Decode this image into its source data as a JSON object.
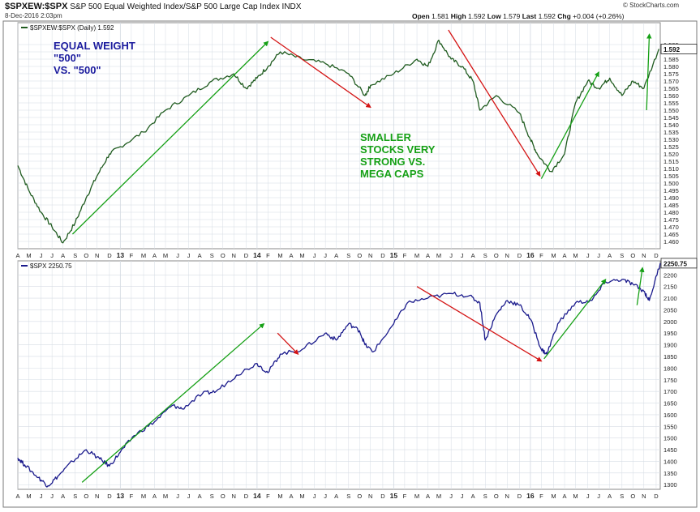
{
  "header": {
    "symbol": "$SPXEW:$SPX",
    "description": "S&P 500 Equal Weighted Index/S&P 500 Large Cap Index",
    "exchange": "INDX",
    "date": "8-Dec-2016 2:03pm",
    "brand": "© StockCharts.com",
    "quote": {
      "open_label": "Open",
      "open": "1.581",
      "high_label": "High",
      "high": "1.592",
      "low_label": "Low",
      "low": "1.579",
      "last_label": "Last",
      "last": "1.592",
      "chg_label": "Chg",
      "chg": "+0.004 (+0.26%)"
    }
  },
  "colors": {
    "ratio_line": "#1f5b1f",
    "spx_line": "#1a1a8c",
    "up_arrow": "#16a016",
    "down_arrow": "#d41414",
    "grid": "#d6dce4",
    "annotation_blue": "#1c1c9e",
    "annotation_green": "#16a016"
  },
  "chart_data": [
    {
      "type": "line",
      "legend": "$SPXEW:$SPX (Daily) 1.592",
      "last_value_label": "1.592",
      "ylim": [
        1.455,
        1.61
      ],
      "yticks": [
        1.46,
        1.465,
        1.47,
        1.475,
        1.48,
        1.485,
        1.49,
        1.495,
        1.5,
        1.505,
        1.51,
        1.515,
        1.52,
        1.525,
        1.53,
        1.535,
        1.54,
        1.545,
        1.55,
        1.555,
        1.56,
        1.565,
        1.57,
        1.575,
        1.58,
        1.585,
        1.59,
        1.595
      ],
      "ytick_labels": [
        "1.460",
        "1.465",
        "1.470",
        "1.475",
        "1.480",
        "1.485",
        "1.490",
        "1.495",
        "1.500",
        "1.505",
        "1.510",
        "1.515",
        "1.520",
        "1.525",
        "1.530",
        "1.535",
        "1.540",
        "1.545",
        "1.550",
        "1.555",
        "1.560",
        "1.565",
        "1.570",
        "1.575",
        "1.580",
        "1.585",
        "1.590",
        "1.595"
      ],
      "x": [
        2012.25,
        2012.33,
        2012.42,
        2012.5,
        2012.58,
        2012.67,
        2012.75,
        2012.83,
        2012.92,
        2013.0,
        2013.17,
        2013.33,
        2013.5,
        2013.67,
        2013.83,
        2013.92,
        2014.0,
        2014.08,
        2014.17,
        2014.33,
        2014.5,
        2014.67,
        2014.79,
        2014.83,
        2015.0,
        2015.17,
        2015.25,
        2015.33,
        2015.42,
        2015.5,
        2015.58,
        2015.63,
        2015.75,
        2015.92,
        2016.0,
        2016.05,
        2016.15,
        2016.25,
        2016.33,
        2016.42,
        2016.5,
        2016.58,
        2016.67,
        2016.75,
        2016.83,
        2016.94
      ],
      "y": [
        1.512,
        1.495,
        1.48,
        1.47,
        1.459,
        1.473,
        1.49,
        1.505,
        1.52,
        1.525,
        1.535,
        1.55,
        1.56,
        1.57,
        1.575,
        1.565,
        1.572,
        1.58,
        1.59,
        1.585,
        1.582,
        1.575,
        1.56,
        1.567,
        1.575,
        1.585,
        1.58,
        1.598,
        1.585,
        1.58,
        1.57,
        1.55,
        1.56,
        1.548,
        1.53,
        1.52,
        1.508,
        1.52,
        1.555,
        1.57,
        1.565,
        1.572,
        1.56,
        1.57,
        1.565,
        1.592
      ],
      "xlim": [
        2012.25,
        2016.95
      ],
      "xticks": [
        {
          "x": 2012.25,
          "label": "A"
        },
        {
          "x": 2012.33,
          "label": "M"
        },
        {
          "x": 2012.42,
          "label": "J"
        },
        {
          "x": 2012.5,
          "label": "J"
        },
        {
          "x": 2012.58,
          "label": "A"
        },
        {
          "x": 2012.67,
          "label": "S"
        },
        {
          "x": 2012.75,
          "label": "O"
        },
        {
          "x": 2012.83,
          "label": "N"
        },
        {
          "x": 2012.92,
          "label": "D"
        },
        {
          "x": 2013.0,
          "label": "13",
          "year": true
        },
        {
          "x": 2013.08,
          "label": "F"
        },
        {
          "x": 2013.17,
          "label": "M"
        },
        {
          "x": 2013.25,
          "label": "A"
        },
        {
          "x": 2013.33,
          "label": "M"
        },
        {
          "x": 2013.42,
          "label": "J"
        },
        {
          "x": 2013.5,
          "label": "J"
        },
        {
          "x": 2013.58,
          "label": "A"
        },
        {
          "x": 2013.67,
          "label": "S"
        },
        {
          "x": 2013.75,
          "label": "O"
        },
        {
          "x": 2013.83,
          "label": "N"
        },
        {
          "x": 2013.92,
          "label": "D"
        },
        {
          "x": 2014.0,
          "label": "14",
          "year": true
        },
        {
          "x": 2014.08,
          "label": "F"
        },
        {
          "x": 2014.17,
          "label": "M"
        },
        {
          "x": 2014.25,
          "label": "A"
        },
        {
          "x": 2014.33,
          "label": "M"
        },
        {
          "x": 2014.42,
          "label": "J"
        },
        {
          "x": 2014.5,
          "label": "J"
        },
        {
          "x": 2014.58,
          "label": "A"
        },
        {
          "x": 2014.67,
          "label": "S"
        },
        {
          "x": 2014.75,
          "label": "O"
        },
        {
          "x": 2014.83,
          "label": "N"
        },
        {
          "x": 2014.92,
          "label": "D"
        },
        {
          "x": 2015.0,
          "label": "15",
          "year": true
        },
        {
          "x": 2015.08,
          "label": "F"
        },
        {
          "x": 2015.17,
          "label": "M"
        },
        {
          "x": 2015.25,
          "label": "A"
        },
        {
          "x": 2015.33,
          "label": "M"
        },
        {
          "x": 2015.42,
          "label": "J"
        },
        {
          "x": 2015.5,
          "label": "J"
        },
        {
          "x": 2015.58,
          "label": "A"
        },
        {
          "x": 2015.67,
          "label": "S"
        },
        {
          "x": 2015.75,
          "label": "O"
        },
        {
          "x": 2015.83,
          "label": "N"
        },
        {
          "x": 2015.92,
          "label": "D"
        },
        {
          "x": 2016.0,
          "label": "16",
          "year": true
        },
        {
          "x": 2016.08,
          "label": "F"
        },
        {
          "x": 2016.17,
          "label": "M"
        },
        {
          "x": 2016.25,
          "label": "A"
        },
        {
          "x": 2016.33,
          "label": "M"
        },
        {
          "x": 2016.42,
          "label": "J"
        },
        {
          "x": 2016.5,
          "label": "J"
        },
        {
          "x": 2016.58,
          "label": "A"
        },
        {
          "x": 2016.67,
          "label": "S"
        },
        {
          "x": 2016.75,
          "label": "O"
        },
        {
          "x": 2016.83,
          "label": "N"
        },
        {
          "x": 2016.92,
          "label": "D"
        }
      ],
      "arrows": [
        {
          "color": "up",
          "from": [
            2012.65,
            1.465
          ],
          "to": [
            2014.08,
            1.597
          ]
        },
        {
          "color": "down",
          "from": [
            2014.1,
            1.6
          ],
          "to": [
            2014.83,
            1.552
          ]
        },
        {
          "color": "down",
          "from": [
            2015.4,
            1.605
          ],
          "to": [
            2016.07,
            1.505
          ]
        },
        {
          "color": "up",
          "from": [
            2016.08,
            1.503
          ],
          "to": [
            2016.5,
            1.576
          ]
        },
        {
          "color": "up",
          "from": [
            2016.85,
            1.55
          ],
          "to": [
            2016.87,
            1.602
          ]
        }
      ],
      "annotations": [
        {
          "lines": [
            "EQUAL WEIGHT",
            "\"500\"",
            "VS. \"500\""
          ],
          "color": "blue"
        },
        {
          "lines": [
            "SMALLER",
            "STOCKS VERY",
            "STRONG VS.",
            "MEGA CAPS"
          ],
          "color": "green"
        }
      ]
    },
    {
      "type": "line",
      "legend": "$SPX 2250.75",
      "last_value_label": "2250.75",
      "ylim": [
        1280,
        2260
      ],
      "yticks": [
        1300,
        1350,
        1400,
        1450,
        1500,
        1550,
        1600,
        1650,
        1700,
        1750,
        1800,
        1850,
        1900,
        1950,
        2000,
        2050,
        2100,
        2150,
        2200
      ],
      "ytick_labels": [
        "1300",
        "1350",
        "1400",
        "1450",
        "1500",
        "1550",
        "1600",
        "1650",
        "1700",
        "1750",
        "1800",
        "1850",
        "1900",
        "1950",
        "2000",
        "2050",
        "2100",
        "2150",
        "2200"
      ],
      "x": [
        2012.25,
        2012.3,
        2012.4,
        2012.47,
        2012.55,
        2012.65,
        2012.75,
        2012.85,
        2012.92,
        2013.0,
        2013.1,
        2013.25,
        2013.38,
        2013.45,
        2013.6,
        2013.7,
        2013.85,
        2014.0,
        2014.08,
        2014.17,
        2014.33,
        2014.5,
        2014.58,
        2014.67,
        2014.75,
        2014.79,
        2014.85,
        2015.0,
        2015.1,
        2015.25,
        2015.42,
        2015.55,
        2015.63,
        2015.67,
        2015.75,
        2015.83,
        2015.92,
        2016.0,
        2016.08,
        2016.12,
        2016.2,
        2016.33,
        2016.45,
        2016.55,
        2016.67,
        2016.75,
        2016.83,
        2016.87,
        2016.95
      ],
      "y": [
        1415,
        1385,
        1330,
        1295,
        1340,
        1400,
        1450,
        1410,
        1380,
        1440,
        1510,
        1570,
        1640,
        1625,
        1690,
        1700,
        1770,
        1820,
        1780,
        1860,
        1880,
        1950,
        1920,
        1990,
        1960,
        1900,
        1870,
        1990,
        2080,
        2100,
        2120,
        2110,
        2080,
        1920,
        2030,
        2090,
        2070,
        2010,
        1880,
        1860,
        1990,
        2080,
        2090,
        2170,
        2180,
        2160,
        2130,
        2090,
        2250
      ],
      "xlim": [
        2012.25,
        2016.95
      ],
      "xticks": [
        {
          "x": 2012.25,
          "label": "A"
        },
        {
          "x": 2012.33,
          "label": "M"
        },
        {
          "x": 2012.42,
          "label": "J"
        },
        {
          "x": 2012.5,
          "label": "J"
        },
        {
          "x": 2012.58,
          "label": "A"
        },
        {
          "x": 2012.67,
          "label": "S"
        },
        {
          "x": 2012.75,
          "label": "O"
        },
        {
          "x": 2012.83,
          "label": "N"
        },
        {
          "x": 2012.92,
          "label": "D"
        },
        {
          "x": 2013.0,
          "label": "13",
          "year": true
        },
        {
          "x": 2013.08,
          "label": "F"
        },
        {
          "x": 2013.17,
          "label": "M"
        },
        {
          "x": 2013.25,
          "label": "A"
        },
        {
          "x": 2013.33,
          "label": "M"
        },
        {
          "x": 2013.42,
          "label": "J"
        },
        {
          "x": 2013.5,
          "label": "J"
        },
        {
          "x": 2013.58,
          "label": "A"
        },
        {
          "x": 2013.67,
          "label": "S"
        },
        {
          "x": 2013.75,
          "label": "O"
        },
        {
          "x": 2013.83,
          "label": "N"
        },
        {
          "x": 2013.92,
          "label": "D"
        },
        {
          "x": 2014.0,
          "label": "14",
          "year": true
        },
        {
          "x": 2014.08,
          "label": "F"
        },
        {
          "x": 2014.17,
          "label": "M"
        },
        {
          "x": 2014.25,
          "label": "A"
        },
        {
          "x": 2014.33,
          "label": "M"
        },
        {
          "x": 2014.42,
          "label": "J"
        },
        {
          "x": 2014.5,
          "label": "J"
        },
        {
          "x": 2014.58,
          "label": "A"
        },
        {
          "x": 2014.67,
          "label": "S"
        },
        {
          "x": 2014.75,
          "label": "O"
        },
        {
          "x": 2014.83,
          "label": "N"
        },
        {
          "x": 2014.92,
          "label": "D"
        },
        {
          "x": 2015.0,
          "label": "15",
          "year": true
        },
        {
          "x": 2015.08,
          "label": "F"
        },
        {
          "x": 2015.17,
          "label": "M"
        },
        {
          "x": 2015.25,
          "label": "A"
        },
        {
          "x": 2015.33,
          "label": "M"
        },
        {
          "x": 2015.42,
          "label": "J"
        },
        {
          "x": 2015.5,
          "label": "J"
        },
        {
          "x": 2015.58,
          "label": "A"
        },
        {
          "x": 2015.67,
          "label": "S"
        },
        {
          "x": 2015.75,
          "label": "O"
        },
        {
          "x": 2015.83,
          "label": "N"
        },
        {
          "x": 2015.92,
          "label": "D"
        },
        {
          "x": 2016.0,
          "label": "16",
          "year": true
        },
        {
          "x": 2016.08,
          "label": "F"
        },
        {
          "x": 2016.17,
          "label": "M"
        },
        {
          "x": 2016.25,
          "label": "A"
        },
        {
          "x": 2016.33,
          "label": "M"
        },
        {
          "x": 2016.42,
          "label": "J"
        },
        {
          "x": 2016.5,
          "label": "J"
        },
        {
          "x": 2016.58,
          "label": "A"
        },
        {
          "x": 2016.67,
          "label": "S"
        },
        {
          "x": 2016.75,
          "label": "O"
        },
        {
          "x": 2016.83,
          "label": "N"
        },
        {
          "x": 2016.92,
          "label": "D"
        }
      ],
      "arrows": [
        {
          "color": "up",
          "from": [
            2012.72,
            1310
          ],
          "to": [
            2014.05,
            1990
          ]
        },
        {
          "color": "down",
          "from": [
            2014.15,
            1950
          ],
          "to": [
            2014.3,
            1860
          ]
        },
        {
          "color": "down",
          "from": [
            2015.17,
            2150
          ],
          "to": [
            2016.08,
            1830
          ]
        },
        {
          "color": "up",
          "from": [
            2016.1,
            1840
          ],
          "to": [
            2016.55,
            2180
          ]
        },
        {
          "color": "up",
          "from": [
            2016.78,
            2070
          ],
          "to": [
            2016.82,
            2230
          ]
        }
      ],
      "annotations": []
    }
  ]
}
